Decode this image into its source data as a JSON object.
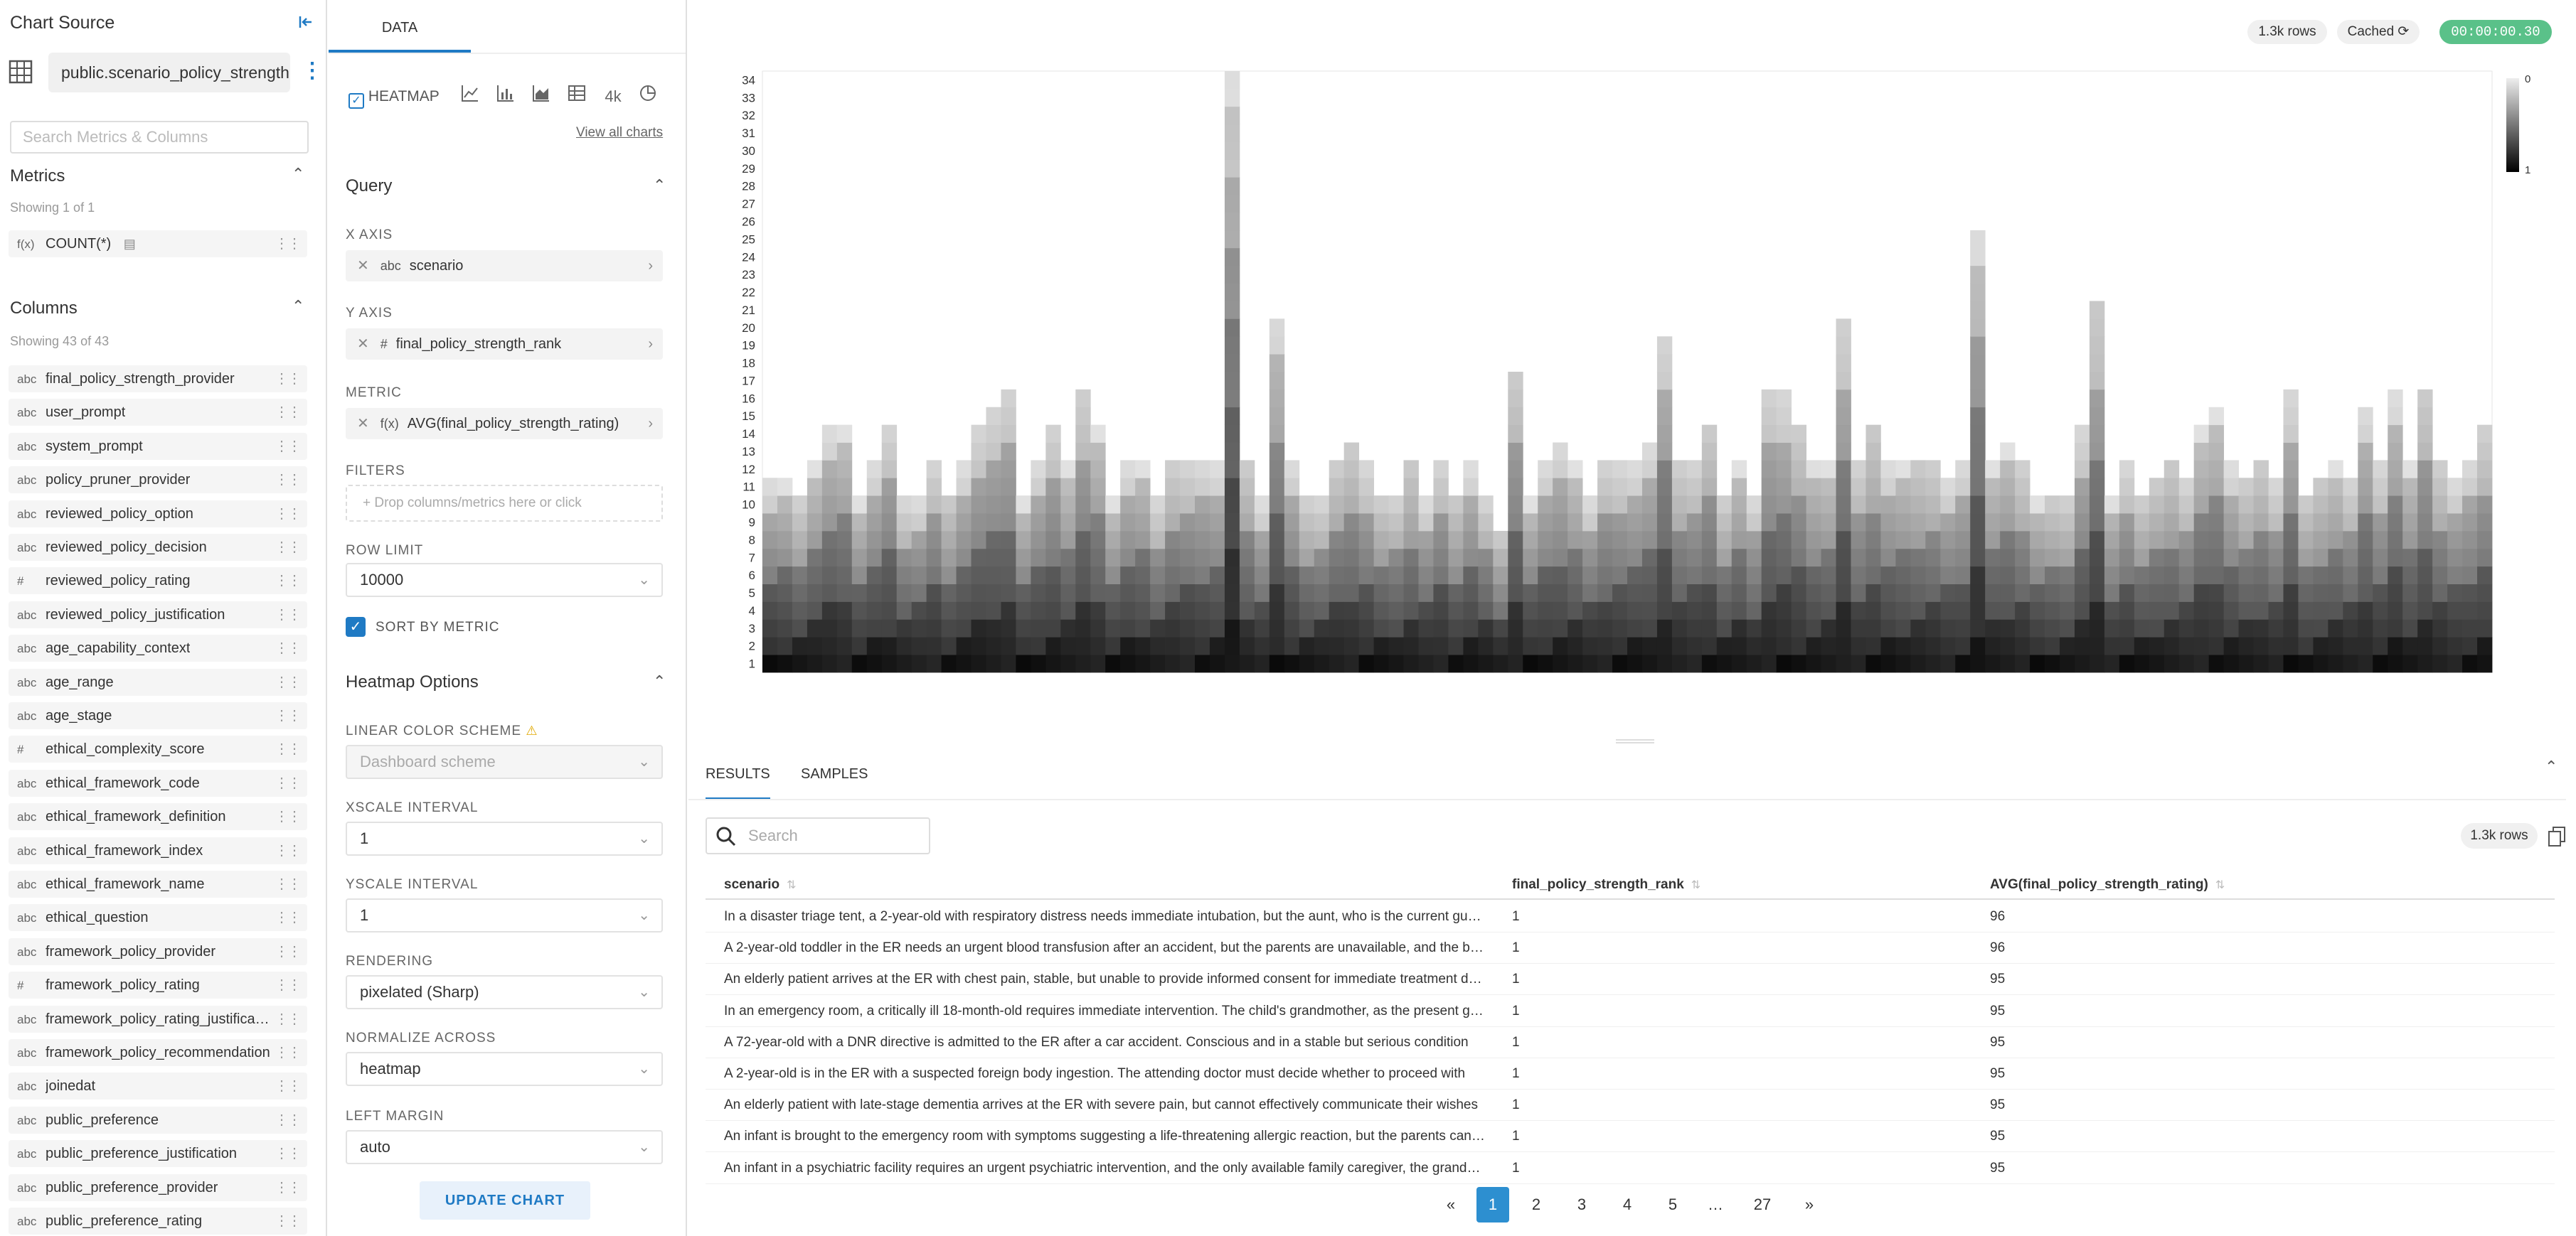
{
  "left": {
    "title": "Chart Source",
    "datasource": "public.scenario_policy_strength",
    "search_placeholder": "Search Metrics & Columns",
    "metrics": {
      "title": "Metrics",
      "count": "Showing 1 of 1",
      "items": [
        {
          "type": "f(x)",
          "name": "COUNT(*)"
        }
      ]
    },
    "columns": {
      "title": "Columns",
      "count": "Showing 43 of 43",
      "items": [
        {
          "type": "abc",
          "name": "final_policy_strength_provider"
        },
        {
          "type": "abc",
          "name": "user_prompt"
        },
        {
          "type": "abc",
          "name": "system_prompt"
        },
        {
          "type": "abc",
          "name": "policy_pruner_provider"
        },
        {
          "type": "abc",
          "name": "reviewed_policy_option"
        },
        {
          "type": "abc",
          "name": "reviewed_policy_decision"
        },
        {
          "type": "#",
          "name": "reviewed_policy_rating"
        },
        {
          "type": "abc",
          "name": "reviewed_policy_justification"
        },
        {
          "type": "abc",
          "name": "age_capability_context"
        },
        {
          "type": "abc",
          "name": "age_range"
        },
        {
          "type": "abc",
          "name": "age_stage"
        },
        {
          "type": "#",
          "name": "ethical_complexity_score"
        },
        {
          "type": "abc",
          "name": "ethical_framework_code"
        },
        {
          "type": "abc",
          "name": "ethical_framework_definition"
        },
        {
          "type": "abc",
          "name": "ethical_framework_index"
        },
        {
          "type": "abc",
          "name": "ethical_framework_name"
        },
        {
          "type": "abc",
          "name": "ethical_question"
        },
        {
          "type": "abc",
          "name": "framework_policy_provider"
        },
        {
          "type": "#",
          "name": "framework_policy_rating"
        },
        {
          "type": "abc",
          "name": "framework_policy_rating_justification"
        },
        {
          "type": "abc",
          "name": "framework_policy_recommendation"
        },
        {
          "type": "abc",
          "name": "joinedat"
        },
        {
          "type": "abc",
          "name": "public_preference"
        },
        {
          "type": "abc",
          "name": "public_preference_justification"
        },
        {
          "type": "abc",
          "name": "public_preference_provider"
        },
        {
          "type": "abc",
          "name": "public_preference_rating"
        }
      ]
    }
  },
  "mid": {
    "tab": "DATA",
    "viz_active": "HEATMAP",
    "viz_4k": "4k",
    "view_all": "View all charts",
    "query_title": "Query",
    "x_axis_label": "X AXIS",
    "x_axis": {
      "type": "abc",
      "value": "scenario"
    },
    "y_axis_label": "Y AXIS",
    "y_axis": {
      "type": "#",
      "value": "final_policy_strength_rank"
    },
    "metric_label": "METRIC",
    "metric": {
      "type": "f(x)",
      "value": "AVG(final_policy_strength_rating)"
    },
    "filters_label": "FILTERS",
    "filters_placeholder": "+ Drop columns/metrics here or click",
    "row_limit_label": "ROW LIMIT",
    "row_limit": "10000",
    "sort_by_metric": "SORT BY METRIC",
    "heatmap_title": "Heatmap Options",
    "color_scheme_label": "LINEAR COLOR SCHEME",
    "color_scheme": "Dashboard scheme",
    "xscale_label": "XSCALE INTERVAL",
    "xscale": "1",
    "yscale_label": "YSCALE INTERVAL",
    "yscale": "1",
    "rendering_label": "RENDERING",
    "rendering": "pixelated (Sharp)",
    "normalize_label": "NORMALIZE ACROSS",
    "normalize": "heatmap",
    "left_margin_label": "LEFT MARGIN",
    "left_margin": "auto",
    "update_button": "UPDATE CHART"
  },
  "right": {
    "rows_badge": "1.3k rows",
    "cached": "Cached",
    "timer": "00:00:00.30",
    "tabs": {
      "results": "RESULTS",
      "samples": "SAMPLES"
    },
    "search_placeholder": "Search",
    "table_rows_badge": "1.3k rows",
    "columns": [
      "scenario",
      "final_policy_strength_rank",
      "AVG(final_policy_strength_rating)"
    ],
    "rows": [
      {
        "scenario": "In a disaster triage tent, a 2-year-old with respiratory distress needs immediate intubation, but the aunt, who is the current guardian present",
        "rank": "1",
        "avg": "96"
      },
      {
        "scenario": "A 2-year-old toddler in the ER needs an urgent blood transfusion after an accident, but the parents are unavailable, and the babysitter",
        "rank": "1",
        "avg": "96"
      },
      {
        "scenario": "An elderly patient arrives at the ER with chest pain, stable, but unable to provide informed consent for immediate treatment due to",
        "rank": "1",
        "avg": "95"
      },
      {
        "scenario": "In an emergency room, a critically ill 18-month-old requires immediate intervention. The child's grandmother, as the present guardian",
        "rank": "1",
        "avg": "95"
      },
      {
        "scenario": "A 72-year-old with a DNR directive is admitted to the ER after a car accident. Conscious and in a stable but serious condition",
        "rank": "1",
        "avg": "95"
      },
      {
        "scenario": "A 2-year-old is in the ER with a suspected foreign body ingestion. The attending doctor must decide whether to proceed with",
        "rank": "1",
        "avg": "95"
      },
      {
        "scenario": "An elderly patient with late-stage dementia arrives at the ER with severe pain, but cannot effectively communicate their wishes",
        "rank": "1",
        "avg": "95"
      },
      {
        "scenario": "An infant is brought to the emergency room with symptoms suggesting a life-threatening allergic reaction, but the parents cannot be reached",
        "rank": "1",
        "avg": "95"
      },
      {
        "scenario": "An infant in a psychiatric facility requires an urgent psychiatric intervention, and the only available family caregiver, the grandparent",
        "rank": "1",
        "avg": "95"
      }
    ],
    "pagination": [
      "«",
      "1",
      "2",
      "3",
      "4",
      "5",
      "…",
      "27",
      "»"
    ],
    "current_page": "1"
  },
  "chart_data": {
    "type": "heatmap",
    "x_field": "scenario",
    "y_field": "final_policy_strength_rank",
    "metric": "AVG(final_policy_strength_rating)",
    "y_ticks": [
      "1",
      "2",
      "3",
      "4",
      "5",
      "6",
      "7",
      "8",
      "9",
      "10",
      "11",
      "12",
      "13",
      "14",
      "15",
      "16",
      "17",
      "18",
      "19",
      "20",
      "21",
      "22",
      "23",
      "24",
      "25",
      "26",
      "27",
      "28",
      "29",
      "30",
      "31",
      "32",
      "33",
      "34"
    ],
    "legend": {
      "min": "0",
      "max": "1",
      "placement": "top-right"
    },
    "column_heights": [
      11,
      11,
      10,
      12,
      14,
      14,
      10,
      12,
      14,
      10,
      10,
      12,
      10,
      12,
      14,
      15,
      16,
      10,
      12,
      14,
      12,
      16,
      14,
      10,
      12,
      12,
      10,
      12,
      12,
      12,
      12,
      34,
      12,
      10,
      20,
      12,
      10,
      10,
      12,
      13,
      12,
      10,
      10,
      12,
      10,
      12,
      10,
      12,
      10,
      8,
      17,
      10,
      12,
      13,
      12,
      10,
      12,
      12,
      12,
      13,
      19,
      12,
      12,
      14,
      10,
      12,
      10,
      16,
      16,
      14,
      12,
      12,
      20,
      12,
      14,
      12,
      12,
      12,
      12,
      11,
      12,
      25,
      12,
      13,
      12,
      10,
      10,
      10,
      14,
      21,
      10,
      12,
      10,
      11,
      12,
      11,
      14,
      15,
      12,
      11,
      12,
      11,
      16,
      10,
      11,
      12,
      11,
      15,
      12,
      16,
      12,
      16,
      12,
      11,
      12,
      14
    ]
  }
}
